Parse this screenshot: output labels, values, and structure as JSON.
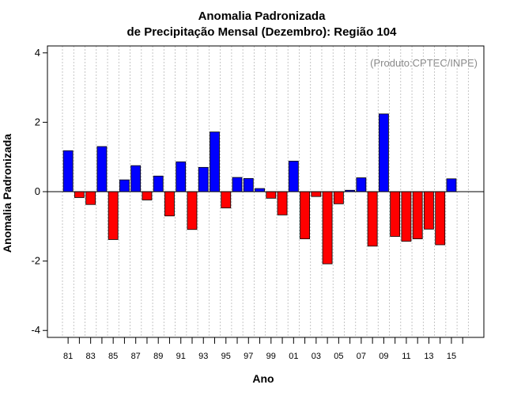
{
  "chart_data": {
    "type": "bar",
    "title": "Anomalia Padronizada",
    "subtitle": "de Precipitação Mensal (Dezembro): Região 104",
    "xlabel": "Ano",
    "ylabel": "Anomalia Padronizada",
    "credit": "(Produto:CPTEC/INPE)",
    "ylim": [
      -4.2,
      4.2
    ],
    "yticks": [
      -4,
      -2,
      0,
      2,
      4
    ],
    "xtick_labels": [
      "81",
      "83",
      "85",
      "87",
      "89",
      "91",
      "93",
      "95",
      "97",
      "99",
      "01",
      "03",
      "05",
      "07",
      "09",
      "11",
      "13",
      "15"
    ],
    "grid": "vertical dotted",
    "positive_color": "#0000ff",
    "negative_color": "#ff0000",
    "categories": [
      "1981",
      "1982",
      "1983",
      "1984",
      "1985",
      "1986",
      "1987",
      "1988",
      "1989",
      "1990",
      "1991",
      "1992",
      "1993",
      "1994",
      "1995",
      "1996",
      "1997",
      "1998",
      "1999",
      "2000",
      "2001",
      "2002",
      "2003",
      "2004",
      "2005",
      "2006",
      "2007",
      "2008",
      "2009",
      "2010",
      "2011",
      "2012",
      "2013",
      "2014",
      "2015"
    ],
    "values": [
      1.18,
      -0.17,
      -0.37,
      1.3,
      -1.38,
      0.34,
      0.75,
      -0.24,
      0.45,
      -0.7,
      0.86,
      -1.09,
      0.7,
      1.72,
      -0.47,
      0.41,
      0.38,
      0.09,
      -0.19,
      -0.67,
      0.88,
      -1.36,
      -0.14,
      -2.08,
      -0.35,
      0.04,
      0.4,
      -1.57,
      2.24,
      -1.29,
      -1.43,
      -1.36,
      -1.08,
      -1.53,
      0.37
    ]
  }
}
